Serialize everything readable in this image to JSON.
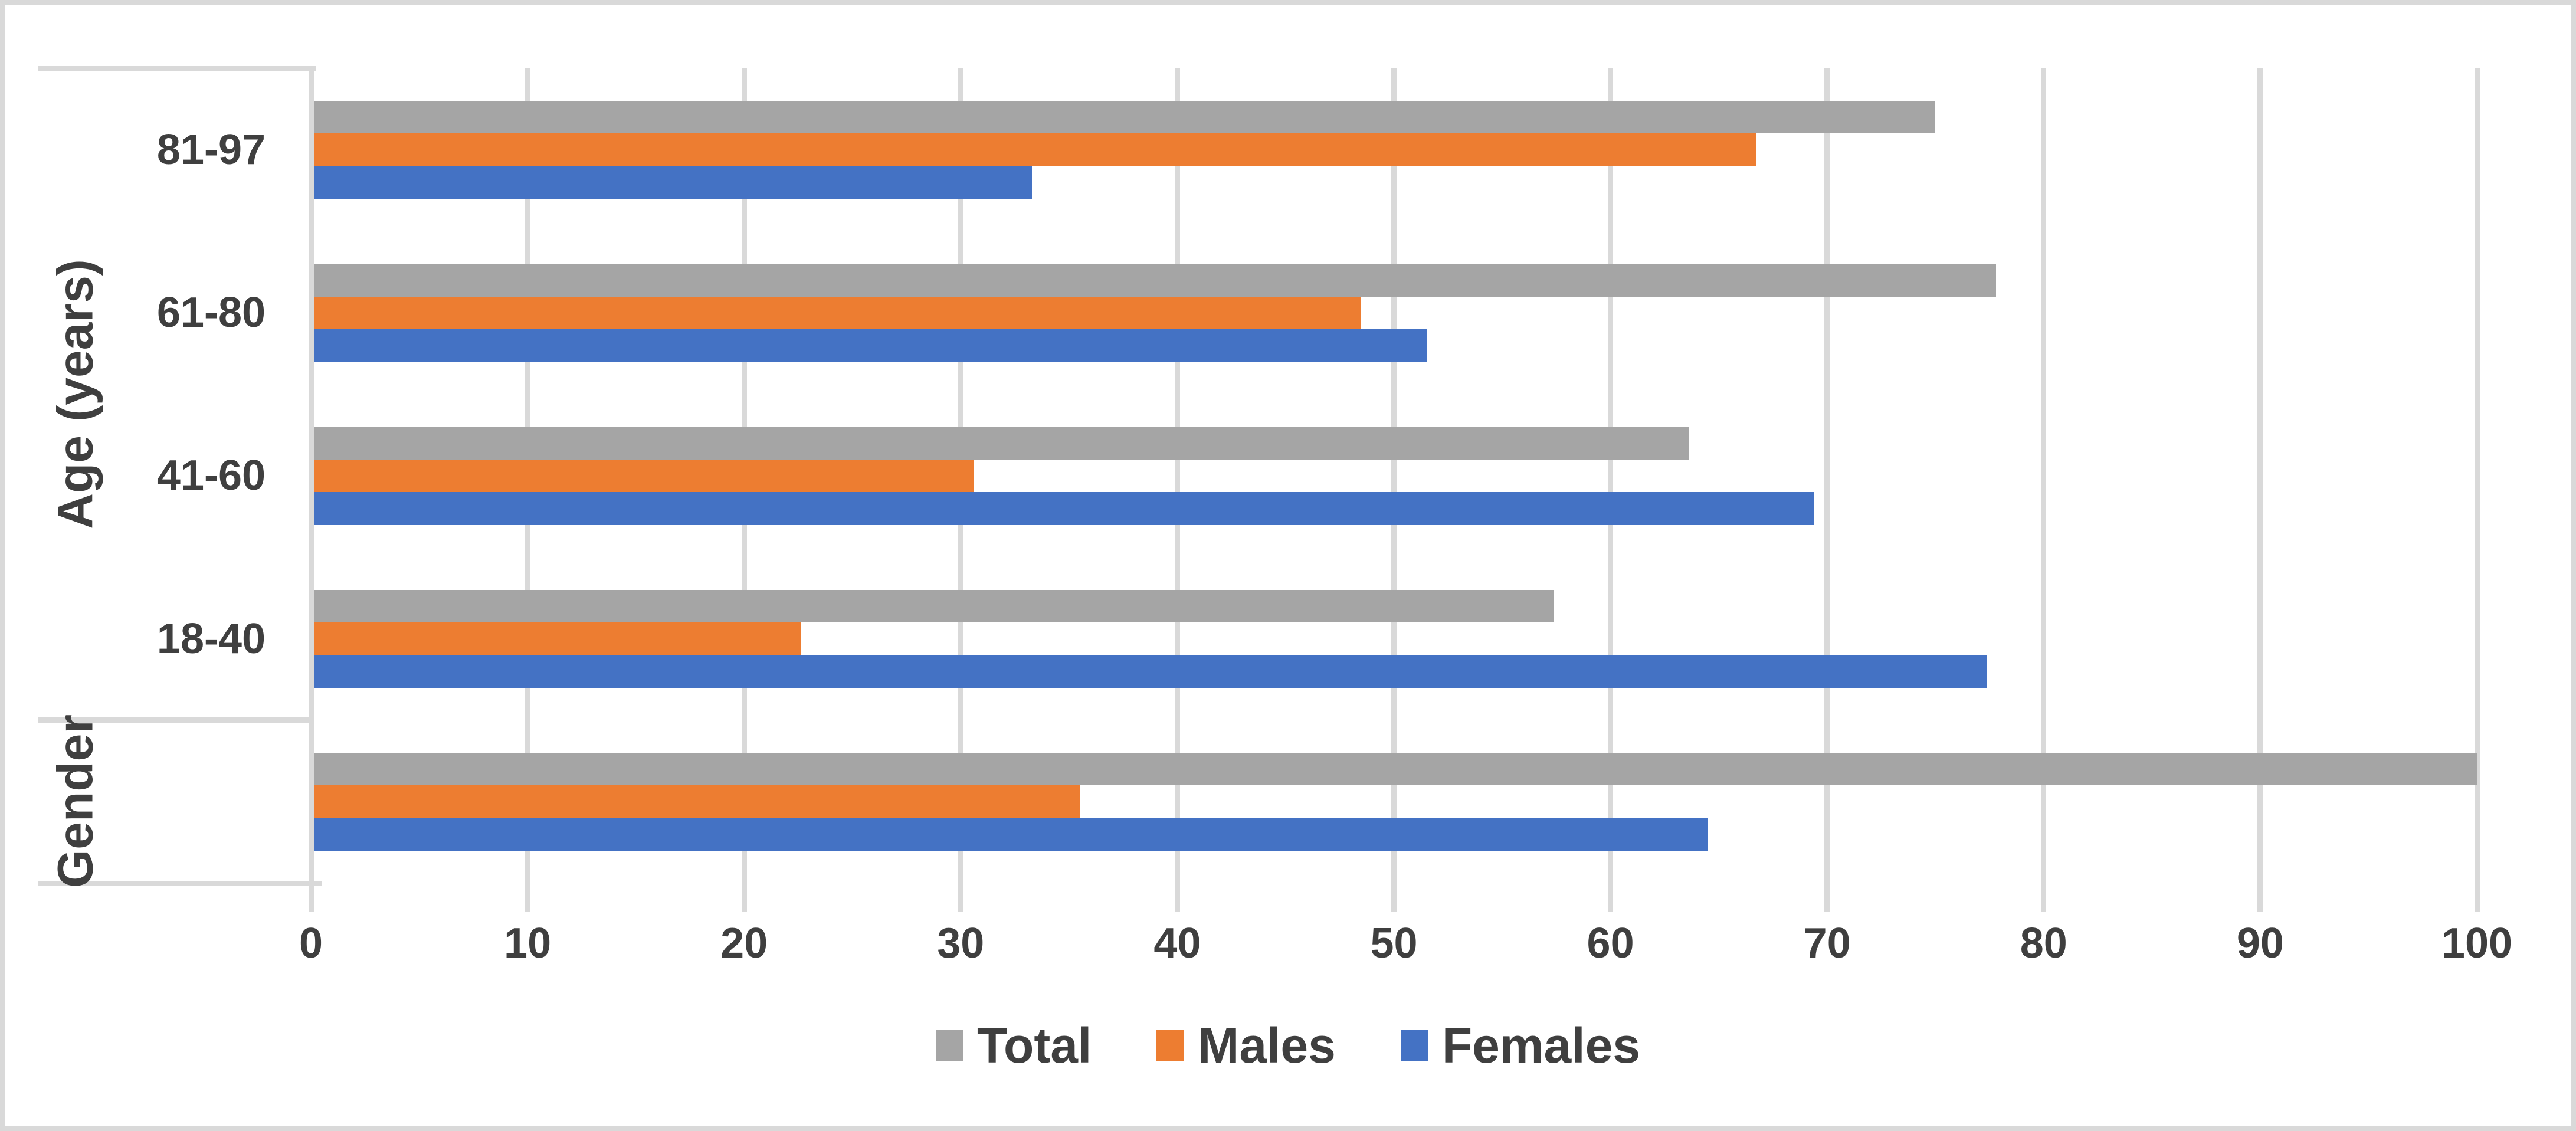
{
  "chart_data": {
    "type": "bar",
    "orientation": "horizontal",
    "title": "",
    "categories": [
      "81-97",
      "61-80",
      "41-60",
      "18-40",
      ""
    ],
    "category_axis_groups": [
      {
        "label": "Age (years)",
        "span": [
          "81-97",
          "61-80",
          "41-60",
          "18-40"
        ]
      },
      {
        "label": "Gender",
        "span": [
          ""
        ]
      }
    ],
    "series": [
      {
        "name": "Total",
        "color": "#A5A5A5",
        "values": [
          75,
          77.8,
          63.6,
          57.4,
          100
        ]
      },
      {
        "name": "Males",
        "color": "#ED7D31",
        "values": [
          66.7,
          48.5,
          30.6,
          22.6,
          35.5
        ]
      },
      {
        "name": "Females",
        "color": "#4472C4",
        "values": [
          33.3,
          51.5,
          69.4,
          77.4,
          64.5
        ]
      }
    ],
    "ylabel_top": "Age (years)",
    "ylabel_bottom": "Gender",
    "xlabel": "",
    "xlim": [
      0,
      100
    ],
    "x_ticks": [
      0,
      10,
      20,
      30,
      40,
      50,
      60,
      70,
      80,
      90,
      100
    ],
    "grid": true,
    "legend": {
      "position": "bottom",
      "entries": [
        "Total",
        "Males",
        "Females"
      ]
    },
    "colors": {
      "gridline": "#D9D9D9",
      "axis_line": "#D9D9D9",
      "text": "#3F3F3F",
      "background": "#FFFFFF",
      "border": "#D9D9D9"
    }
  }
}
